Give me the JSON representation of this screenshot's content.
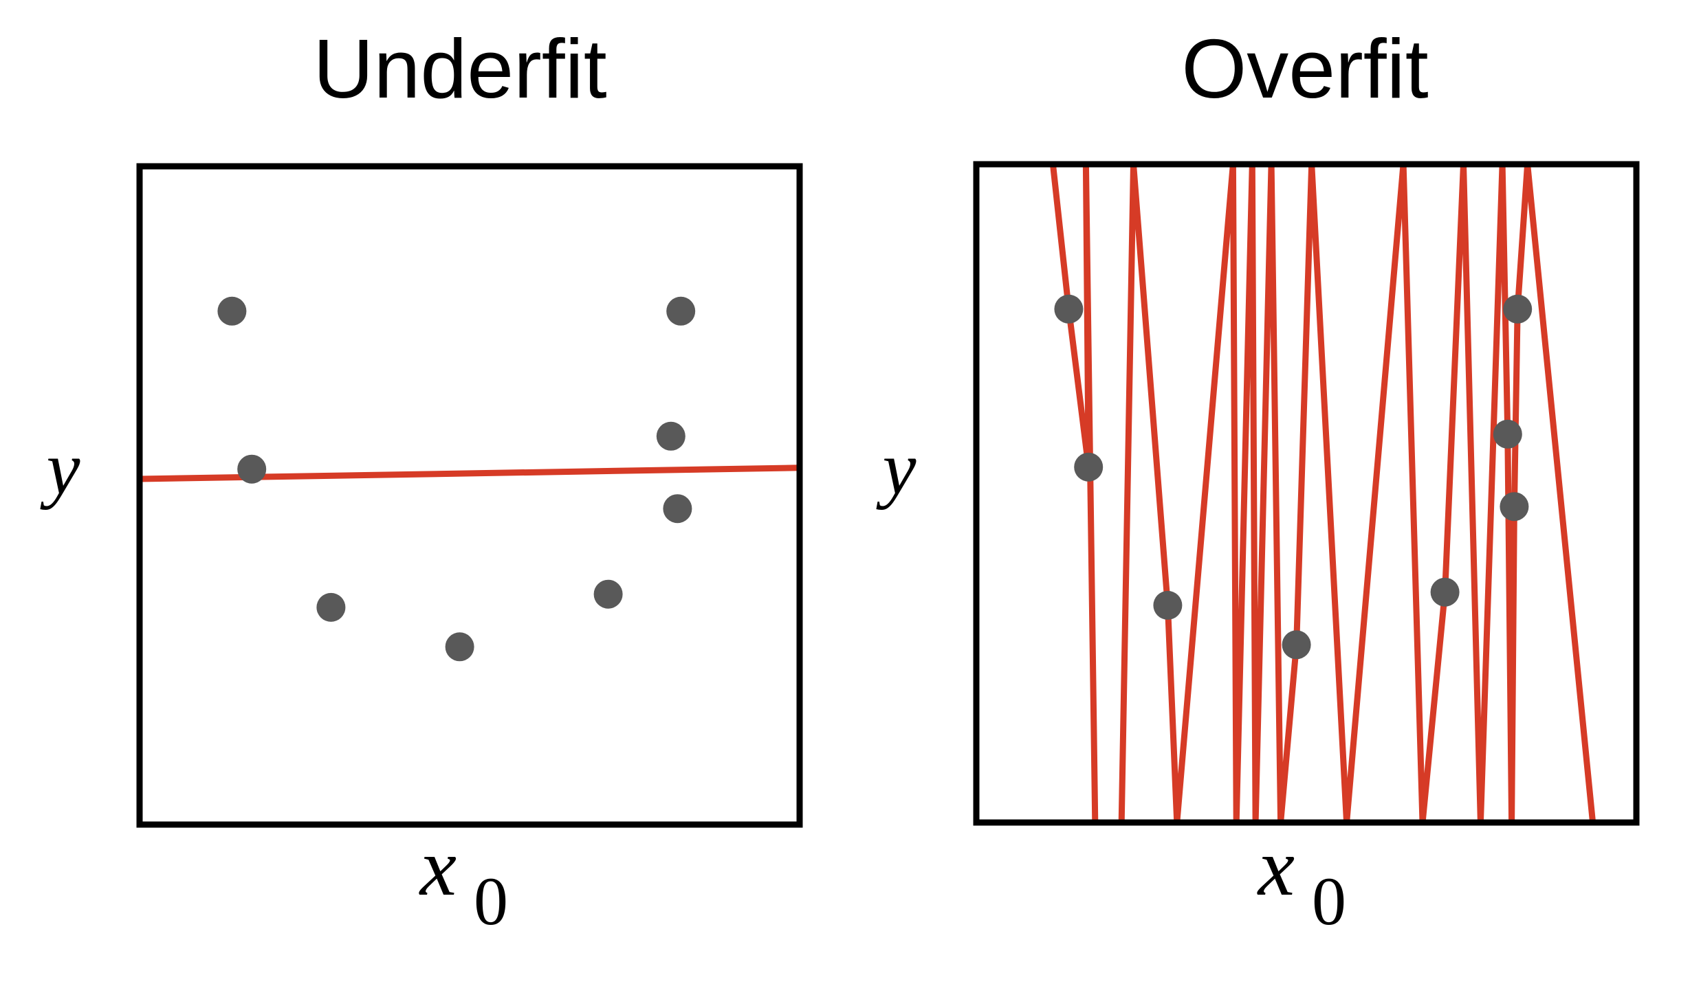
{
  "chart_data": [
    {
      "type": "scatter",
      "title": "Underfit",
      "xlabel": "x",
      "xlabel_sub": "0",
      "ylabel": "y",
      "xlim": [
        0,
        1
      ],
      "ylim": [
        0,
        1
      ],
      "grid": false,
      "point_color": "#595959",
      "fit_color": "#d63b26",
      "points": [
        {
          "x": 0.14,
          "y": 0.78
        },
        {
          "x": 0.17,
          "y": 0.54
        },
        {
          "x": 0.29,
          "y": 0.33
        },
        {
          "x": 0.485,
          "y": 0.27
        },
        {
          "x": 0.71,
          "y": 0.35
        },
        {
          "x": 0.805,
          "y": 0.59
        },
        {
          "x": 0.815,
          "y": 0.48
        },
        {
          "x": 0.82,
          "y": 0.78
        }
      ],
      "fit": [
        {
          "x": 0.0,
          "y": 0.525
        },
        {
          "x": 1.0,
          "y": 0.542
        }
      ]
    },
    {
      "type": "scatter",
      "title": "Overfit",
      "xlabel": "x",
      "xlabel_sub": "0",
      "ylabel": "y",
      "xlim": [
        0,
        1
      ],
      "ylim": [
        0,
        1
      ],
      "grid": false,
      "point_color": "#595959",
      "fit_color": "#d63b26",
      "points": [
        {
          "x": 0.14,
          "y": 0.78
        },
        {
          "x": 0.17,
          "y": 0.54
        },
        {
          "x": 0.29,
          "y": 0.33
        },
        {
          "x": 0.485,
          "y": 0.27
        },
        {
          "x": 0.71,
          "y": 0.35
        },
        {
          "x": 0.805,
          "y": 0.59
        },
        {
          "x": 0.815,
          "y": 0.48
        },
        {
          "x": 0.82,
          "y": 0.78
        }
      ],
      "fit": [
        {
          "x": 0.116,
          "y": 1.0
        },
        {
          "x": 0.14,
          "y": 0.78
        },
        {
          "x": 0.17,
          "y": 0.54
        },
        {
          "x": 0.166,
          "y": 1.0
        },
        {
          "x": 0.18,
          "y": 0.0
        },
        {
          "x": 0.22,
          "y": 0.0
        },
        {
          "x": 0.238,
          "y": 1.0
        },
        {
          "x": 0.29,
          "y": 0.33
        },
        {
          "x": 0.304,
          "y": 0.0
        },
        {
          "x": 0.389,
          "y": 1.0
        },
        {
          "x": 0.394,
          "y": 0.0
        },
        {
          "x": 0.418,
          "y": 1.0
        },
        {
          "x": 0.423,
          "y": 0.0
        },
        {
          "x": 0.447,
          "y": 1.0
        },
        {
          "x": 0.461,
          "y": 0.0
        },
        {
          "x": 0.485,
          "y": 0.27
        },
        {
          "x": 0.508,
          "y": 1.0
        },
        {
          "x": 0.561,
          "y": 0.0
        },
        {
          "x": 0.647,
          "y": 1.0
        },
        {
          "x": 0.676,
          "y": 0.0
        },
        {
          "x": 0.71,
          "y": 0.35
        },
        {
          "x": 0.738,
          "y": 1.0
        },
        {
          "x": 0.764,
          "y": 0.0
        },
        {
          "x": 0.797,
          "y": 1.0
        },
        {
          "x": 0.805,
          "y": 0.59
        },
        {
          "x": 0.811,
          "y": 0.0
        },
        {
          "x": 0.815,
          "y": 0.48
        },
        {
          "x": 0.82,
          "y": 0.78
        },
        {
          "x": 0.835,
          "y": 1.0
        },
        {
          "x": 0.934,
          "y": 0.0
        }
      ]
    }
  ]
}
